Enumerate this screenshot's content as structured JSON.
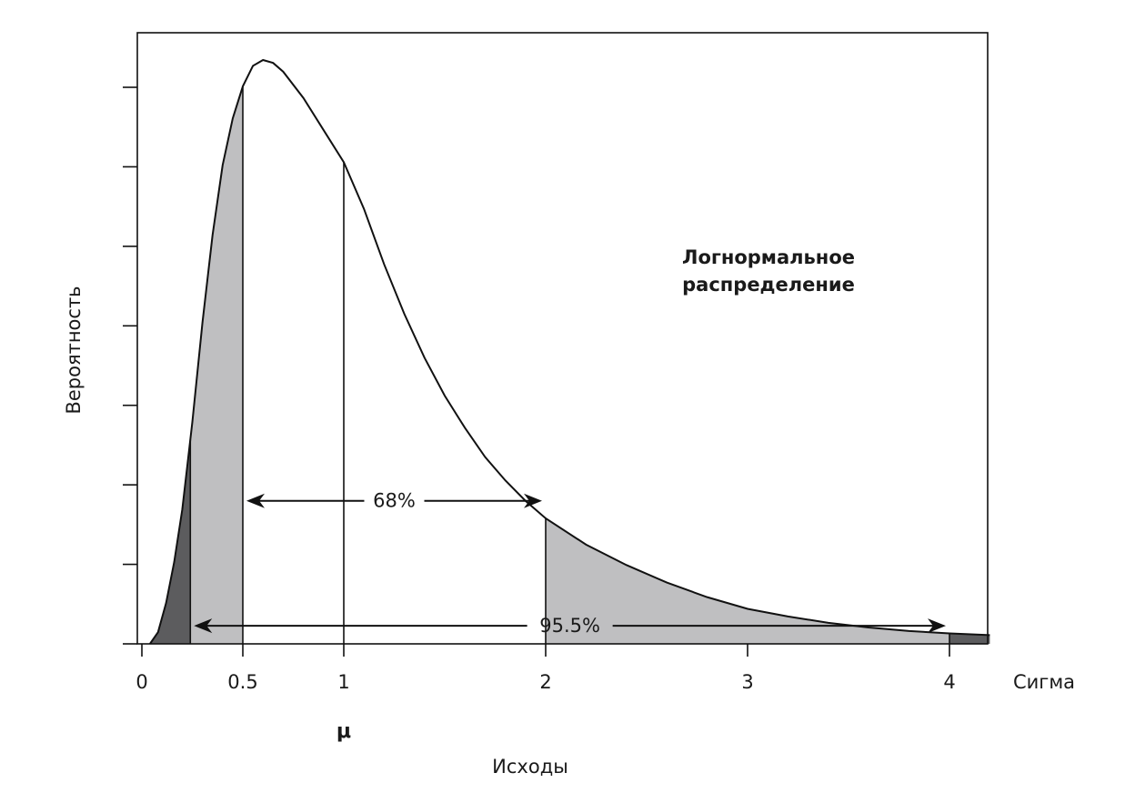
{
  "chart_data": {
    "type": "area",
    "title": "Логнормальное распределение",
    "ylabel": "Вероятность",
    "xlabel": "Исходы",
    "x_axis_name": "Сигма",
    "mu_label": "μ",
    "xlim": [
      0,
      4.2
    ],
    "ylim": [
      0,
      1
    ],
    "x_ticks": [
      {
        "value": 0,
        "label": "0"
      },
      {
        "value": 0.5,
        "label": "0.5"
      },
      {
        "value": 1,
        "label": "1"
      },
      {
        "value": 2,
        "label": "2"
      },
      {
        "value": 3,
        "label": "3"
      },
      {
        "value": 4,
        "label": "4"
      }
    ],
    "y_tick_count": 7,
    "grid": false,
    "curve": {
      "x": [
        0.04,
        0.08,
        0.12,
        0.16,
        0.2,
        0.25,
        0.3,
        0.35,
        0.4,
        0.45,
        0.5,
        0.55,
        0.6,
        0.65,
        0.7,
        0.8,
        0.9,
        1.0,
        1.1,
        1.2,
        1.3,
        1.4,
        1.5,
        1.6,
        1.7,
        1.8,
        1.9,
        2.0,
        2.2,
        2.4,
        2.6,
        2.8,
        3.0,
        3.2,
        3.4,
        3.6,
        3.8,
        4.0,
        4.2
      ],
      "y": [
        0.0,
        0.02,
        0.07,
        0.14,
        0.23,
        0.38,
        0.55,
        0.7,
        0.82,
        0.9,
        0.955,
        0.99,
        1.0,
        0.995,
        0.98,
        0.935,
        0.88,
        0.825,
        0.745,
        0.65,
        0.565,
        0.49,
        0.425,
        0.37,
        0.32,
        0.28,
        0.245,
        0.215,
        0.17,
        0.135,
        0.105,
        0.08,
        0.06,
        0.047,
        0.036,
        0.028,
        0.022,
        0.018,
        0.015
      ]
    },
    "regions": [
      {
        "from": 0.04,
        "to": 0.24,
        "shade": "dark"
      },
      {
        "from": 0.24,
        "to": 0.5,
        "shade": "light"
      },
      {
        "from": 2.0,
        "to": 4.0,
        "shade": "light"
      },
      {
        "from": 4.0,
        "to": 4.2,
        "shade": "dark"
      }
    ],
    "verticals": [
      0.24,
      0.5,
      1.0,
      2.0,
      4.0
    ],
    "annotations": [
      {
        "text": "68%",
        "from": 0.5,
        "to": 2.0,
        "y": 0.245
      },
      {
        "text": "95.5%",
        "from": 0.24,
        "to": 4.0,
        "y": 0.031
      }
    ],
    "colors": {
      "dark": "#5c5c5e",
      "light": "#bfbfc1",
      "line": "#111111"
    }
  }
}
